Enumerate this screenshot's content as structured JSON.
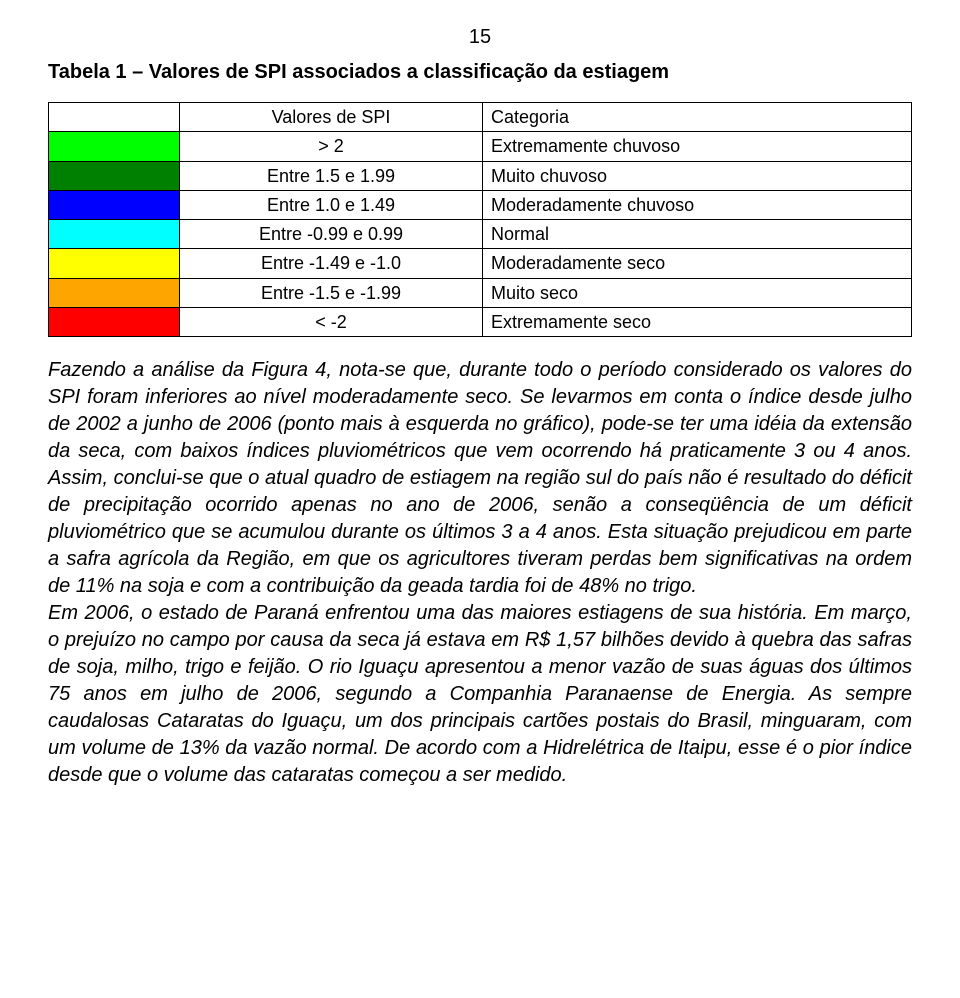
{
  "page_number": "15",
  "table": {
    "caption": "Tabela 1 – Valores de SPI associados a classificação da estiagem",
    "header": {
      "values": "Valores de SPI",
      "category": "Categoria"
    },
    "rows": [
      {
        "color": "#00ff00",
        "value": "> 2",
        "category": "Extremamente chuvoso"
      },
      {
        "color": "#008000",
        "value": "Entre 1.5 e 1.99",
        "category": "Muito chuvoso"
      },
      {
        "color": "#0000ff",
        "value": "Entre 1.0 e 1.49",
        "category": "Moderadamente chuvoso"
      },
      {
        "color": "#00ffff",
        "value": "Entre -0.99 e 0.99",
        "category": "Normal"
      },
      {
        "color": "#ffff00",
        "value": "Entre -1.49 e -1.0",
        "category": "Moderadamente seco"
      },
      {
        "color": "#ffa500",
        "value": "Entre -1.5 e -1.99",
        "category": "Muito seco"
      },
      {
        "color": "#ff0000",
        "value": "< -2",
        "category": "Extremamente seco"
      }
    ]
  },
  "body_text": "Fazendo a análise da Figura 4, nota-se que, durante todo o período considerado os valores do SPI foram inferiores ao nível moderadamente seco. Se levarmos em conta o índice desde julho de 2002 a junho de 2006 (ponto mais à esquerda no gráfico), pode-se ter uma idéia da extensão da seca, com baixos índices pluviométricos que vem ocorrendo há praticamente 3 ou 4 anos. Assim, conclui-se que o atual quadro de estiagem na região sul do país não é resultado do déficit de precipitação ocorrido apenas no ano de 2006, senão a conseqüência de um déficit pluviométrico que se acumulou durante os últimos 3 a 4 anos. Esta situação prejudicou em parte a safra agrícola da Região, em que os agricultores tiveram perdas bem significativas na ordem de 11% na soja e com a contribuição da geada tardia foi de 48% no trigo.\nEm 2006, o estado de Paraná enfrentou uma das maiores estiagens de sua história. Em março, o prejuízo no campo por causa da seca já estava em R$ 1,57 bilhões devido à quebra das safras de soja, milho, trigo e feijão. O rio Iguaçu apresentou a menor vazão de suas águas dos últimos 75 anos em julho de 2006, segundo a Companhia Paranaense de Energia. As sempre caudalosas Cataratas do Iguaçu, um dos principais cartões postais do Brasil, minguaram, com um volume de 13% da vazão normal. De acordo com a Hidrelétrica de Itaipu, esse é o pior índice desde que o volume das cataratas começou a ser medido."
}
